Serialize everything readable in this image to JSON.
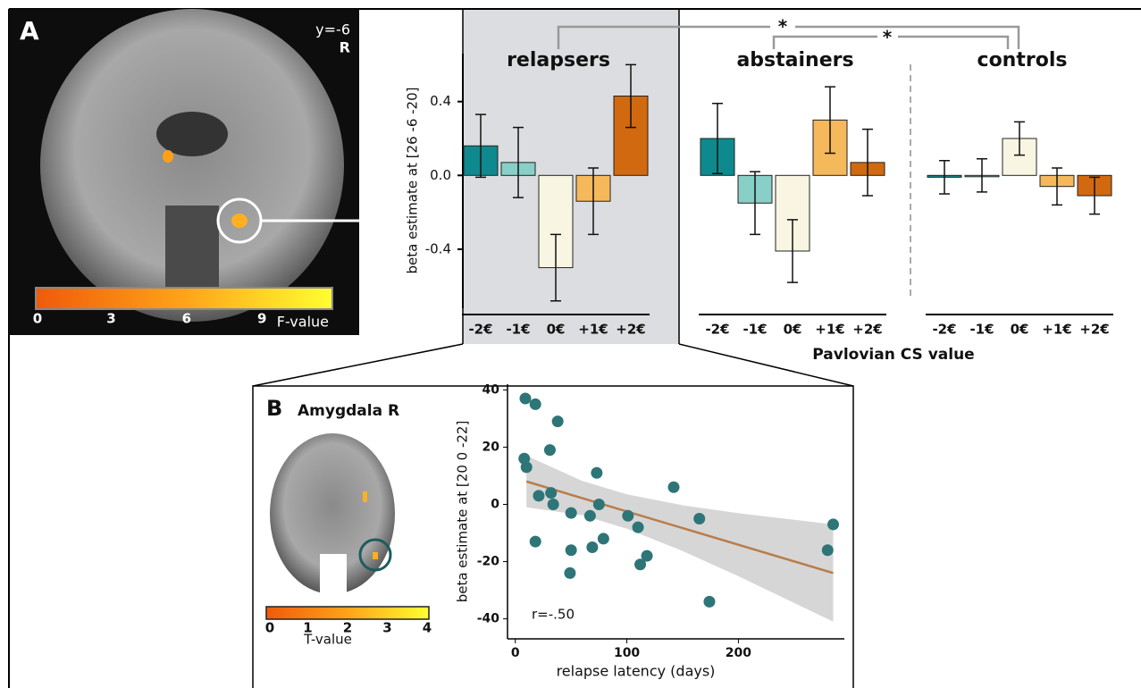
{
  "panels": {
    "a": "A",
    "b": "B"
  },
  "brain_a": {
    "slice": "y=-6",
    "side": "R",
    "colorbar": {
      "range": [
        0,
        11.8
      ],
      "ticks": [
        0,
        3,
        6,
        9
      ],
      "label": "F-value"
    }
  },
  "brain_b": {
    "title": "Amygdala R",
    "colorbar": {
      "range": [
        0,
        4
      ],
      "ticks": [
        0,
        1,
        2,
        3,
        4
      ],
      "label": "T-value"
    }
  },
  "chart_data": [
    {
      "type": "bar",
      "ylabel": "beta estimate at [26 -6 -20]",
      "xlabel": "Pavlovian CS value",
      "categories": [
        "-2€",
        "-1€",
        "0€",
        "+1€",
        "+2€"
      ],
      "colors": [
        "#0e8a8f",
        "#88cfc7",
        "#f8f6e2",
        "#f5b95b",
        "#d0690f"
      ],
      "series": [
        {
          "name": "relapsers",
          "values": [
            0.16,
            0.07,
            -0.5,
            -0.14,
            0.43
          ],
          "errors": [
            0.17,
            0.19,
            0.18,
            0.18,
            0.17
          ]
        },
        {
          "name": "abstainers",
          "values": [
            0.2,
            -0.15,
            -0.41,
            0.3,
            0.07
          ],
          "errors": [
            0.19,
            0.17,
            0.17,
            0.18,
            0.18
          ]
        },
        {
          "name": "controls",
          "values": [
            -0.01,
            0.0,
            0.2,
            -0.06,
            -0.11
          ],
          "errors": [
            0.09,
            0.09,
            0.09,
            0.1,
            0.1
          ]
        }
      ],
      "ylim": [
        -0.72,
        0.66
      ],
      "yticks": [
        -0.4,
        {
          "value": 0,
          "label": "0.0"
        },
        0.4
      ],
      "annotations": [
        "*",
        "*"
      ]
    },
    {
      "type": "scatter",
      "xlabel": "relapse latency (days)",
      "ylabel": "beta estimate at [20 0 -22]",
      "annotation": "r=-.50",
      "color": "#2e7577",
      "x": [
        9,
        18,
        8,
        10,
        38,
        31,
        21,
        32,
        34,
        18,
        50,
        67,
        73,
        75,
        50,
        49,
        69,
        79,
        101,
        110,
        112,
        118,
        142,
        165,
        174,
        280,
        285
      ],
      "y": [
        37,
        35,
        16,
        13,
        29,
        19,
        3,
        4,
        0,
        -13,
        -3,
        -4,
        11,
        0,
        -16,
        -24,
        -15,
        -12,
        -4,
        -8,
        -21,
        -18,
        6,
        -5,
        -34,
        -16,
        -7
      ],
      "fit": {
        "x": [
          10,
          285
        ],
        "y": [
          8,
          -24
        ],
        "color": "#b87d4b"
      },
      "band": {
        "x": [
          10,
          60,
          100,
          150,
          200,
          285
        ],
        "upper": [
          17,
          8.2,
          3.5,
          -0.3,
          -3.1,
          -7
        ],
        "lower": [
          -1,
          -3.8,
          -8.5,
          -16.3,
          -25.1,
          -41
        ]
      },
      "xlim": [
        -7,
        295
      ],
      "ylim": [
        -47,
        42
      ],
      "xticks": [
        0,
        100,
        200
      ],
      "yticks": [
        -40,
        -20,
        0,
        20,
        40
      ]
    }
  ]
}
